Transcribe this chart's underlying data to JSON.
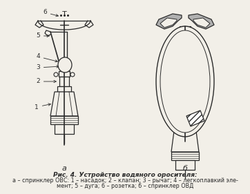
{
  "title": "Рис. 4. Устройство водяного оросителя:",
  "caption_line1": "а – спринклер ОВС: 1 – насадок; 2 – клапан; 3 – рычаг; 4 – легкоплавкий эле-",
  "caption_line2": "мент; 5 – дуга; 6 – розетка; б – спринклер ОВД",
  "label_a": "а",
  "label_b": "б",
  "bg_color": "#f2efe8",
  "line_color": "#2a2a2a",
  "fig_width": 3.62,
  "fig_height": 2.81,
  "dpi": 100
}
